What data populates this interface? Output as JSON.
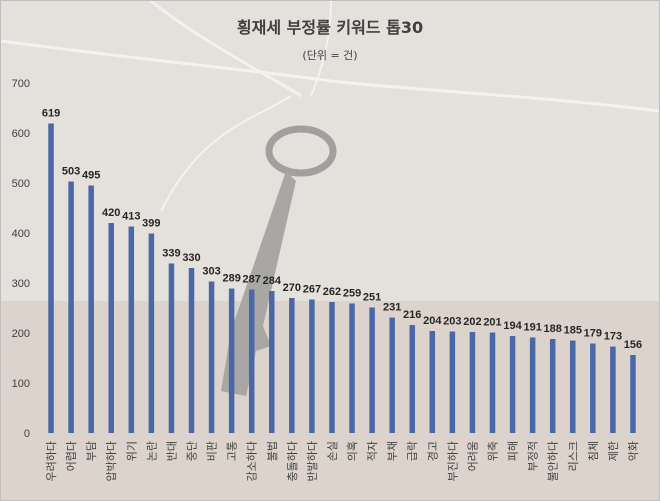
{
  "chart_data": {
    "type": "bar",
    "title": "횡재세 부정률 키워드 톱30",
    "subtitle": "(단위 = 건)",
    "xlabel": "",
    "ylabel": "",
    "ylim": [
      0,
      700
    ],
    "yticks": [
      0,
      100,
      200,
      300,
      400,
      500,
      600,
      700
    ],
    "grid": false,
    "legend": "none",
    "bar_color": "#4a67a8",
    "categories": [
      "우려하다",
      "어렵다",
      "부담",
      "압박하다",
      "위기",
      "논란",
      "반대",
      "중단",
      "비판",
      "고통",
      "감소하다",
      "불법",
      "충돌하다",
      "반발하다",
      "손실",
      "의혹",
      "적자",
      "부채",
      "급락",
      "경고",
      "부진하다",
      "어려움",
      "위축",
      "피해",
      "부정적",
      "불안하다",
      "리스크",
      "침체",
      "제한",
      "악화"
    ],
    "values": [
      619,
      503,
      495,
      420,
      413,
      399,
      339,
      330,
      303,
      289,
      287,
      284,
      270,
      267,
      262,
      259,
      251,
      231,
      216,
      204,
      203,
      202,
      201,
      194,
      191,
      188,
      185,
      179,
      173,
      156
    ]
  }
}
